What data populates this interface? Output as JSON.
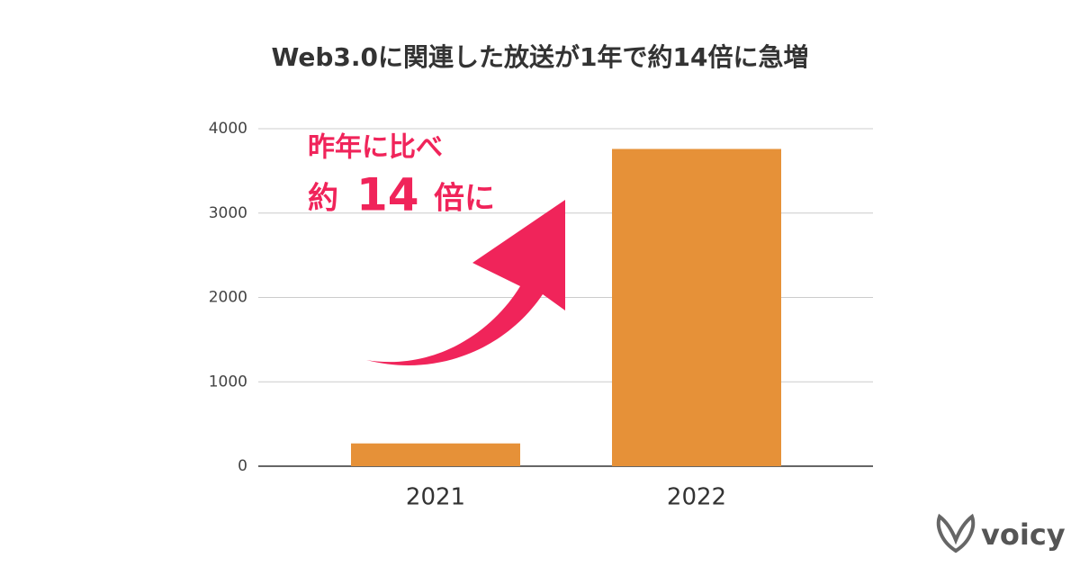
{
  "chart_data": {
    "type": "bar",
    "title": "Web3.0に関連した放送が1年で約14倍に急増",
    "categories": [
      "2021",
      "2022"
    ],
    "values": [
      270,
      3760
    ],
    "color": "#e69138",
    "ylim": [
      0,
      4000
    ],
    "yticks": [
      0,
      1000,
      2000,
      3000,
      4000
    ],
    "grid": true,
    "annotations": [
      "昨年に比べ",
      "約",
      "14",
      "倍に"
    ],
    "annotation_color": "#f0245a"
  },
  "brand": "voicy"
}
